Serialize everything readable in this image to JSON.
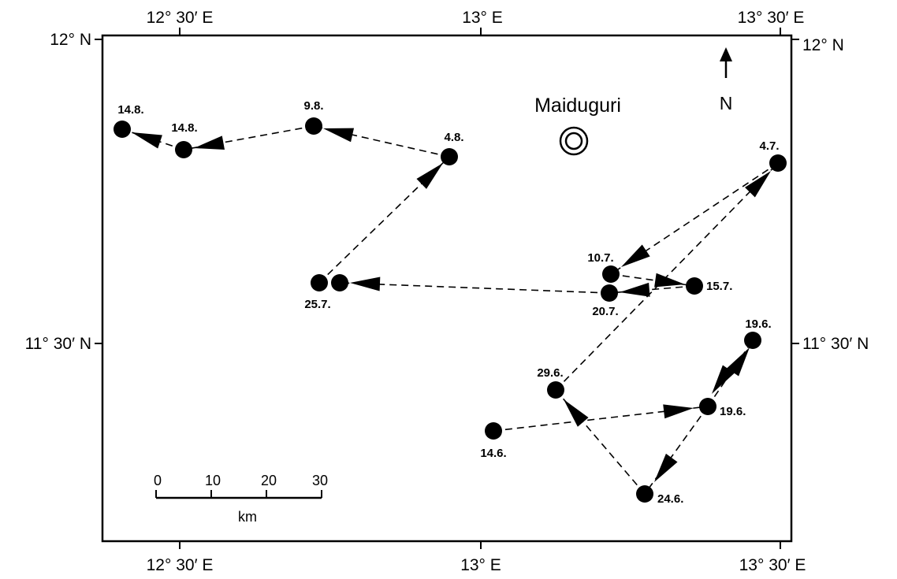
{
  "axis": {
    "top_left": "12° 30′ E",
    "top_mid": "13° E",
    "top_right": "13° 30′ E",
    "bottom_left": "12° 30′ E",
    "bottom_mid": "13° E",
    "bottom_right": "13° 30′ E",
    "left_top": "12° N",
    "left_mid": "11° 30′ N",
    "right_top": "12° N",
    "right_mid": "11° 30′ N"
  },
  "city": {
    "name": "Maiduguri"
  },
  "north_arrow": {
    "label": "N"
  },
  "scale_bar": {
    "ticks": [
      "0",
      "10",
      "20",
      "30"
    ],
    "unit": "km"
  },
  "dates": {
    "d_14_6": "14.6.",
    "d_19_6_a": "19.6.",
    "d_19_6_b": "19.6.",
    "d_24_6": "24.6.",
    "d_29_6": "29.6.",
    "d_4_7": "4.7.",
    "d_10_7": "10.7.",
    "d_15_7": "15.7.",
    "d_20_7": "20.7.",
    "d_25_7": "25.7.",
    "d_4_8": "4.8.",
    "d_9_8": "9.8.",
    "d_14_8_a": "14.8.",
    "d_14_8_b": "14.8."
  }
}
